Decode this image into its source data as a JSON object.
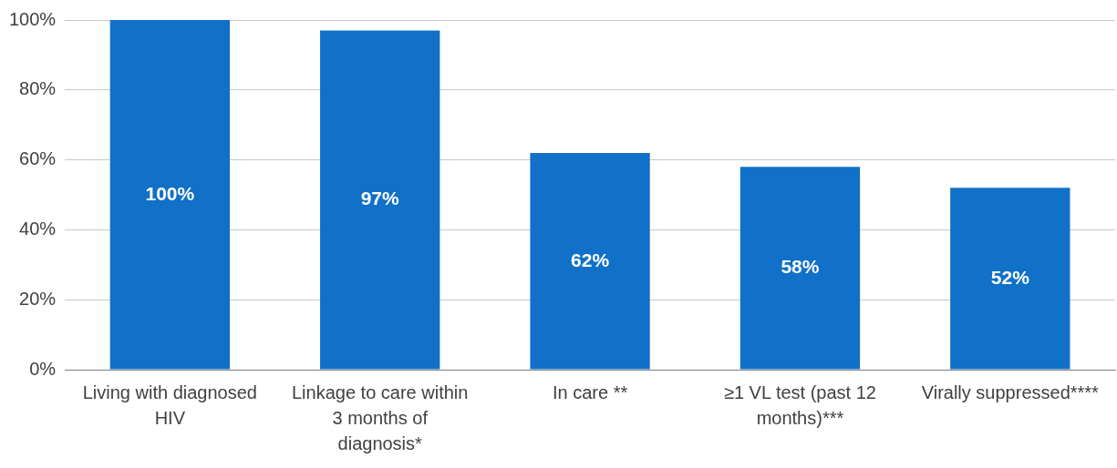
{
  "chart_data": {
    "type": "bar",
    "categories": [
      "Living with diagnosed HIV",
      "Linkage to care within 3 months of diagnosis*",
      "In care **",
      "≥1 VL test (past 12 months)***",
      "Virally suppressed****"
    ],
    "values": [
      100,
      97,
      62,
      58,
      52
    ],
    "value_labels": [
      "100%",
      "97%",
      "62%",
      "58%",
      "52%"
    ],
    "color": "#1170c8",
    "ylim": [
      0,
      100
    ],
    "yticks": [
      {
        "value": 0,
        "label": "0%"
      },
      {
        "value": 20,
        "label": "20%"
      },
      {
        "value": 40,
        "label": "40%"
      },
      {
        "value": 60,
        "label": "60%"
      },
      {
        "value": 80,
        "label": "80%"
      },
      {
        "value": 100,
        "label": "100%"
      }
    ],
    "grid": "y",
    "legend": false
  }
}
